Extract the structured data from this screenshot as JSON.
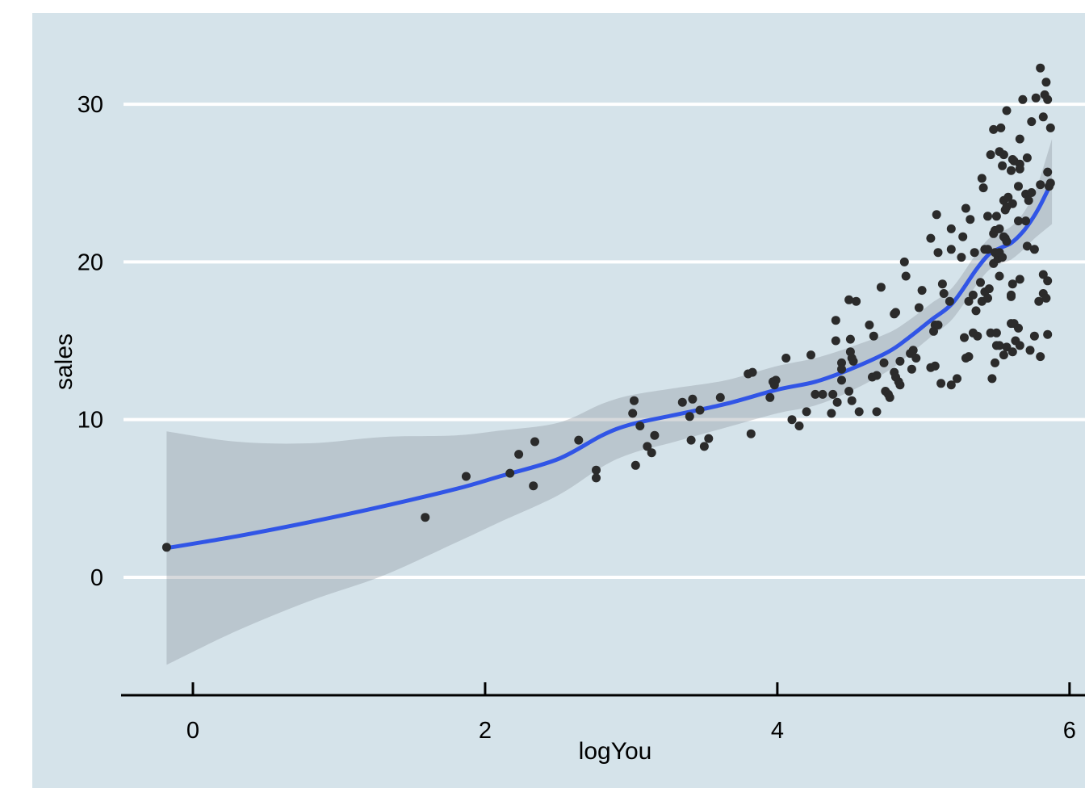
{
  "figure": {
    "background": "#d5e3ea",
    "grid_color": "#ffffff",
    "axis_color": "#000000",
    "text_color": "#000000"
  },
  "chart_data": {
    "type": "scatter",
    "title": "",
    "xlabel": "logYou",
    "ylabel": "sales",
    "x_ticks": [
      0,
      2,
      4,
      6
    ],
    "y_ticks": [
      0,
      10,
      20,
      30
    ],
    "xlim": [
      -0.475,
      6.255
    ],
    "ylim": [
      -7.48,
      34.77
    ],
    "legend": "none",
    "grid": "horizontal white gridlines at y ticks",
    "point_color": "#2b2b2b",
    "point_radius": 5.5,
    "line_color": "#3155e6",
    "line_width": 5,
    "band_fill": "rgba(130,138,145,0.32)",
    "points": [
      [
        -0.18,
        1.9
      ],
      [
        1.59,
        3.8
      ],
      [
        1.87,
        6.4
      ],
      [
        2.17,
        6.6
      ],
      [
        2.23,
        7.8
      ],
      [
        2.34,
        8.6
      ],
      [
        2.33,
        5.8
      ],
      [
        2.64,
        8.7
      ],
      [
        2.76,
        6.8
      ],
      [
        2.76,
        6.3
      ],
      [
        3.02,
        11.2
      ],
      [
        3.01,
        10.4
      ],
      [
        3.06,
        9.6
      ],
      [
        3.03,
        7.1
      ],
      [
        3.11,
        8.3
      ],
      [
        3.14,
        7.9
      ],
      [
        3.16,
        9.0
      ],
      [
        3.35,
        11.1
      ],
      [
        3.42,
        11.3
      ],
      [
        3.4,
        10.2
      ],
      [
        3.41,
        8.7
      ],
      [
        3.47,
        10.6
      ],
      [
        3.5,
        8.3
      ],
      [
        3.53,
        8.8
      ],
      [
        3.61,
        11.4
      ],
      [
        3.82,
        9.1
      ],
      [
        3.8,
        12.9
      ],
      [
        3.83,
        13.0
      ],
      [
        3.95,
        11.4
      ],
      [
        3.97,
        12.4
      ],
      [
        3.99,
        12.5
      ],
      [
        3.98,
        12.2
      ],
      [
        4.06,
        13.9
      ],
      [
        4.1,
        10.0
      ],
      [
        4.15,
        9.6
      ],
      [
        4.2,
        10.5
      ],
      [
        4.23,
        14.1
      ],
      [
        4.26,
        11.6
      ],
      [
        4.31,
        11.6
      ],
      [
        4.37,
        10.4
      ],
      [
        4.38,
        11.6
      ],
      [
        4.4,
        16.3
      ],
      [
        4.4,
        15.0
      ],
      [
        4.41,
        11.1
      ],
      [
        4.44,
        13.6
      ],
      [
        4.44,
        13.2
      ],
      [
        4.44,
        12.5
      ],
      [
        4.49,
        17.6
      ],
      [
        4.54,
        17.5
      ],
      [
        4.5,
        15.1
      ],
      [
        4.5,
        14.3
      ],
      [
        4.51,
        13.9
      ],
      [
        4.52,
        13.7
      ],
      [
        4.49,
        11.8
      ],
      [
        4.51,
        11.2
      ],
      [
        4.56,
        10.5
      ],
      [
        4.63,
        16.0
      ],
      [
        4.66,
        15.3
      ],
      [
        4.65,
        12.7
      ],
      [
        4.68,
        12.8
      ],
      [
        4.68,
        10.5
      ],
      [
        4.71,
        18.4
      ],
      [
        4.74,
        11.8
      ],
      [
        4.76,
        11.6
      ],
      [
        4.77,
        11.4
      ],
      [
        4.73,
        13.6
      ],
      [
        4.8,
        16.7
      ],
      [
        4.81,
        16.8
      ],
      [
        4.8,
        13.0
      ],
      [
        4.83,
        12.4
      ],
      [
        4.81,
        12.7
      ],
      [
        4.84,
        12.2
      ],
      [
        4.84,
        13.7
      ],
      [
        4.87,
        20.0
      ],
      [
        4.88,
        19.1
      ],
      [
        4.92,
        13.2
      ],
      [
        4.91,
        14.2
      ],
      [
        4.93,
        14.4
      ],
      [
        4.95,
        13.9
      ],
      [
        4.97,
        17.1
      ],
      [
        4.99,
        18.2
      ],
      [
        5.05,
        21.5
      ],
      [
        5.05,
        13.3
      ],
      [
        5.07,
        15.6
      ],
      [
        5.08,
        16.0
      ],
      [
        5.08,
        13.4
      ],
      [
        5.09,
        23.0
      ],
      [
        5.1,
        20.6
      ],
      [
        5.1,
        16.0
      ],
      [
        5.12,
        12.3
      ],
      [
        5.13,
        18.6
      ],
      [
        5.14,
        18.0
      ],
      [
        5.18,
        17.5
      ],
      [
        5.19,
        22.1
      ],
      [
        5.19,
        20.8
      ],
      [
        5.19,
        12.2
      ],
      [
        5.23,
        12.6
      ],
      [
        5.26,
        20.3
      ],
      [
        5.27,
        21.6
      ],
      [
        5.28,
        15.2
      ],
      [
        5.29,
        23.4
      ],
      [
        5.29,
        13.9
      ],
      [
        5.31,
        17.5
      ],
      [
        5.31,
        14.0
      ],
      [
        5.32,
        22.7
      ],
      [
        5.34,
        17.9
      ],
      [
        5.34,
        15.5
      ],
      [
        5.35,
        20.6
      ],
      [
        5.36,
        16.9
      ],
      [
        5.37,
        15.3
      ],
      [
        5.39,
        18.7
      ],
      [
        5.4,
        17.5
      ],
      [
        5.4,
        25.3
      ],
      [
        5.41,
        24.7
      ],
      [
        5.42,
        18.1
      ],
      [
        5.42,
        20.8
      ],
      [
        5.44,
        17.7
      ],
      [
        5.44,
        20.8
      ],
      [
        5.44,
        22.9
      ],
      [
        5.45,
        18.3
      ],
      [
        5.46,
        26.8
      ],
      [
        5.46,
        15.5
      ],
      [
        5.47,
        12.6
      ],
      [
        5.48,
        19.9
      ],
      [
        5.48,
        21.8
      ],
      [
        5.48,
        28.4
      ],
      [
        5.49,
        20.6
      ],
      [
        5.49,
        22.0
      ],
      [
        5.49,
        13.6
      ],
      [
        5.5,
        15.5
      ],
      [
        5.5,
        14.7
      ],
      [
        5.5,
        22.9
      ],
      [
        5.51,
        20.2
      ],
      [
        5.52,
        20.6
      ],
      [
        5.52,
        27.0
      ],
      [
        5.52,
        22.1
      ],
      [
        5.52,
        19.1
      ],
      [
        5.52,
        14.7
      ],
      [
        5.53,
        28.5
      ],
      [
        5.54,
        26.1
      ],
      [
        5.54,
        20.3
      ],
      [
        5.55,
        23.9
      ],
      [
        5.55,
        26.8
      ],
      [
        5.55,
        21.6
      ],
      [
        5.55,
        14.1
      ],
      [
        5.56,
        23.3
      ],
      [
        5.56,
        21.5
      ],
      [
        5.57,
        29.6
      ],
      [
        5.57,
        21.3
      ],
      [
        5.57,
        23.5
      ],
      [
        5.57,
        14.6
      ],
      [
        5.58,
        24.1
      ],
      [
        5.6,
        17.9
      ],
      [
        5.6,
        16.1
      ],
      [
        5.6,
        25.8
      ],
      [
        5.6,
        17.8
      ],
      [
        5.61,
        26.5
      ],
      [
        5.61,
        23.7
      ],
      [
        5.61,
        18.6
      ],
      [
        5.61,
        14.3
      ],
      [
        5.62,
        16.1
      ],
      [
        5.62,
        26.4
      ],
      [
        5.63,
        15.0
      ],
      [
        5.65,
        24.8
      ],
      [
        5.65,
        22.6
      ],
      [
        5.65,
        15.8
      ],
      [
        5.66,
        27.8
      ],
      [
        5.66,
        26.2
      ],
      [
        5.66,
        25.9
      ],
      [
        5.66,
        18.9
      ],
      [
        5.66,
        14.7
      ],
      [
        5.68,
        30.3
      ],
      [
        5.7,
        24.3
      ],
      [
        5.7,
        22.6
      ],
      [
        5.71,
        26.6
      ],
      [
        5.71,
        21.0
      ],
      [
        5.72,
        23.9
      ],
      [
        5.73,
        14.4
      ],
      [
        5.74,
        28.9
      ],
      [
        5.74,
        24.4
      ],
      [
        5.76,
        20.8
      ],
      [
        5.76,
        15.3
      ],
      [
        5.77,
        30.4
      ],
      [
        5.79,
        17.5
      ],
      [
        5.8,
        32.3
      ],
      [
        5.8,
        24.9
      ],
      [
        5.8,
        14.0
      ],
      [
        5.82,
        29.2
      ],
      [
        5.82,
        19.2
      ],
      [
        5.82,
        18.0
      ],
      [
        5.83,
        30.6
      ],
      [
        5.84,
        31.4
      ],
      [
        5.84,
        17.7
      ],
      [
        5.85,
        30.3
      ],
      [
        5.85,
        25.7
      ],
      [
        5.85,
        18.8
      ],
      [
        5.85,
        15.4
      ],
      [
        5.86,
        24.8
      ],
      [
        5.87,
        28.5
      ],
      [
        5.87,
        25.0
      ]
    ],
    "smooth_line": [
      [
        -0.18,
        1.85
      ],
      [
        0.3,
        2.6
      ],
      [
        0.8,
        3.5
      ],
      [
        1.3,
        4.5
      ],
      [
        1.8,
        5.6
      ],
      [
        2.1,
        6.4
      ],
      [
        2.5,
        7.5
      ],
      [
        2.8,
        9.0
      ],
      [
        3.0,
        9.7
      ],
      [
        3.3,
        10.3
      ],
      [
        3.65,
        11.0
      ],
      [
        4.0,
        11.9
      ],
      [
        4.26,
        12.4
      ],
      [
        4.5,
        13.2
      ],
      [
        4.76,
        14.3
      ],
      [
        4.9,
        15.2
      ],
      [
        5.05,
        16.3
      ],
      [
        5.2,
        17.4
      ],
      [
        5.36,
        19.5
      ],
      [
        5.45,
        20.5
      ],
      [
        5.53,
        20.9
      ],
      [
        5.6,
        21.2
      ],
      [
        5.68,
        21.9
      ],
      [
        5.75,
        22.8
      ],
      [
        5.8,
        23.6
      ],
      [
        5.88,
        25.1
      ]
    ],
    "band": {
      "x": [
        -0.18,
        0.3,
        0.8,
        1.3,
        1.8,
        2.1,
        2.5,
        2.8,
        3.0,
        3.3,
        3.65,
        4.0,
        4.26,
        4.5,
        4.76,
        4.9,
        5.05,
        5.2,
        5.36,
        5.45,
        5.53,
        5.6,
        5.68,
        5.75,
        5.8,
        5.88
      ],
      "upper": [
        9.25,
        8.6,
        8.5,
        8.9,
        9.0,
        9.3,
        9.8,
        11.0,
        11.55,
        12.0,
        12.5,
        13.4,
        13.9,
        14.6,
        15.5,
        16.3,
        17.35,
        18.4,
        20.5,
        21.5,
        21.9,
        22.25,
        23.05,
        24.2,
        25.4,
        27.8
      ],
      "lower": [
        -5.55,
        -3.4,
        -1.5,
        0.1,
        2.2,
        3.5,
        5.2,
        7.0,
        7.85,
        8.6,
        9.5,
        10.4,
        10.9,
        11.8,
        13.1,
        14.1,
        15.25,
        16.4,
        18.5,
        19.5,
        19.9,
        20.15,
        20.75,
        21.4,
        21.8,
        22.4
      ]
    }
  }
}
